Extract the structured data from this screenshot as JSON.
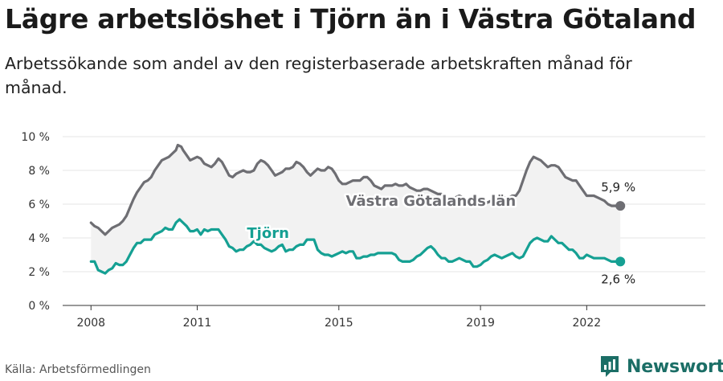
{
  "header": {
    "title": "Lägre arbetslöshet i Tjörn än i Västra Götaland",
    "subtitle": "Arbetssökande som andel av den registerbaserade arbetskraften månad för månad."
  },
  "footer": {
    "source": "Källa: Arbetsförmedlingen",
    "brand": "Newsworthy"
  },
  "chart_data": {
    "type": "line",
    "x_unit": "year",
    "xlim": [
      2007.2,
      2025.35
    ],
    "ylim": [
      0,
      10
    ],
    "y_ticks": [
      {
        "value": 0,
        "label": "0 %"
      },
      {
        "value": 2,
        "label": "2 %"
      },
      {
        "value": 4,
        "label": "4 %"
      },
      {
        "value": 6,
        "label": "6 %"
      },
      {
        "value": 8,
        "label": "8 %"
      },
      {
        "value": 10,
        "label": "10 %"
      }
    ],
    "x_ticks": [
      {
        "value": 2008,
        "label": "2008"
      },
      {
        "value": 2011,
        "label": "2011"
      },
      {
        "value": 2015,
        "label": "2015"
      },
      {
        "value": 2019,
        "label": "2019"
      },
      {
        "value": 2022,
        "label": "2022"
      }
    ],
    "grid": "horizontal",
    "shade_between_series": true,
    "series": [
      {
        "name": "Västra Götalands län",
        "color": "#6e6e73",
        "end_label": "5,9 %",
        "points": [
          [
            2008.0,
            4.9
          ],
          [
            2008.1,
            4.7
          ],
          [
            2008.2,
            4.6
          ],
          [
            2008.3,
            4.4
          ],
          [
            2008.4,
            4.2
          ],
          [
            2008.5,
            4.4
          ],
          [
            2008.6,
            4.6
          ],
          [
            2008.7,
            4.7
          ],
          [
            2008.8,
            4.8
          ],
          [
            2008.9,
            5.0
          ],
          [
            2009.0,
            5.3
          ],
          [
            2009.1,
            5.8
          ],
          [
            2009.2,
            6.3
          ],
          [
            2009.3,
            6.7
          ],
          [
            2009.4,
            7.0
          ],
          [
            2009.5,
            7.3
          ],
          [
            2009.6,
            7.4
          ],
          [
            2009.7,
            7.6
          ],
          [
            2009.8,
            8.0
          ],
          [
            2009.9,
            8.3
          ],
          [
            2010.0,
            8.6
          ],
          [
            2010.1,
            8.7
          ],
          [
            2010.2,
            8.8
          ],
          [
            2010.3,
            9.0
          ],
          [
            2010.4,
            9.2
          ],
          [
            2010.45,
            9.5
          ],
          [
            2010.55,
            9.4
          ],
          [
            2010.6,
            9.2
          ],
          [
            2010.7,
            8.9
          ],
          [
            2010.8,
            8.6
          ],
          [
            2010.9,
            8.7
          ],
          [
            2011.0,
            8.8
          ],
          [
            2011.1,
            8.7
          ],
          [
            2011.2,
            8.4
          ],
          [
            2011.3,
            8.3
          ],
          [
            2011.4,
            8.2
          ],
          [
            2011.5,
            8.4
          ],
          [
            2011.6,
            8.7
          ],
          [
            2011.7,
            8.5
          ],
          [
            2011.8,
            8.1
          ],
          [
            2011.9,
            7.7
          ],
          [
            2012.0,
            7.6
          ],
          [
            2012.1,
            7.8
          ],
          [
            2012.2,
            7.9
          ],
          [
            2012.3,
            8.0
          ],
          [
            2012.4,
            7.9
          ],
          [
            2012.5,
            7.9
          ],
          [
            2012.6,
            8.0
          ],
          [
            2012.7,
            8.4
          ],
          [
            2012.8,
            8.6
          ],
          [
            2012.9,
            8.5
          ],
          [
            2013.0,
            8.3
          ],
          [
            2013.1,
            8.0
          ],
          [
            2013.2,
            7.7
          ],
          [
            2013.3,
            7.8
          ],
          [
            2013.4,
            7.9
          ],
          [
            2013.5,
            8.1
          ],
          [
            2013.6,
            8.1
          ],
          [
            2013.7,
            8.2
          ],
          [
            2013.8,
            8.5
          ],
          [
            2013.9,
            8.4
          ],
          [
            2014.0,
            8.2
          ],
          [
            2014.1,
            7.9
          ],
          [
            2014.2,
            7.7
          ],
          [
            2014.3,
            7.9
          ],
          [
            2014.4,
            8.1
          ],
          [
            2014.5,
            8.0
          ],
          [
            2014.6,
            8.0
          ],
          [
            2014.7,
            8.2
          ],
          [
            2014.8,
            8.1
          ],
          [
            2014.9,
            7.8
          ],
          [
            2015.0,
            7.4
          ],
          [
            2015.1,
            7.2
          ],
          [
            2015.2,
            7.2
          ],
          [
            2015.3,
            7.3
          ],
          [
            2015.4,
            7.4
          ],
          [
            2015.5,
            7.4
          ],
          [
            2015.6,
            7.4
          ],
          [
            2015.7,
            7.6
          ],
          [
            2015.8,
            7.6
          ],
          [
            2015.9,
            7.4
          ],
          [
            2016.0,
            7.1
          ],
          [
            2016.1,
            7.0
          ],
          [
            2016.2,
            6.9
          ],
          [
            2016.3,
            7.1
          ],
          [
            2016.4,
            7.1
          ],
          [
            2016.5,
            7.1
          ],
          [
            2016.6,
            7.2
          ],
          [
            2016.7,
            7.1
          ],
          [
            2016.8,
            7.1
          ],
          [
            2016.9,
            7.2
          ],
          [
            2017.0,
            7.0
          ],
          [
            2017.1,
            6.9
          ],
          [
            2017.2,
            6.8
          ],
          [
            2017.3,
            6.8
          ],
          [
            2017.4,
            6.9
          ],
          [
            2017.5,
            6.9
          ],
          [
            2017.6,
            6.8
          ],
          [
            2017.7,
            6.7
          ],
          [
            2017.8,
            6.6
          ],
          [
            2017.9,
            6.6
          ],
          [
            2018.0,
            6.5
          ],
          [
            2018.1,
            6.3
          ],
          [
            2018.2,
            6.3
          ],
          [
            2018.3,
            6.4
          ],
          [
            2018.4,
            6.5
          ],
          [
            2018.5,
            6.4
          ],
          [
            2018.6,
            6.2
          ],
          [
            2018.7,
            6.1
          ],
          [
            2018.8,
            6.0
          ],
          [
            2018.9,
            5.9
          ],
          [
            2019.0,
            6.0
          ],
          [
            2019.1,
            6.0
          ],
          [
            2019.2,
            6.1
          ],
          [
            2019.3,
            6.2
          ],
          [
            2019.4,
            6.2
          ],
          [
            2019.5,
            6.3
          ],
          [
            2019.6,
            6.3
          ],
          [
            2019.7,
            6.4
          ],
          [
            2019.8,
            6.4
          ],
          [
            2019.9,
            6.5
          ],
          [
            2020.0,
            6.5
          ],
          [
            2020.1,
            6.8
          ],
          [
            2020.2,
            7.4
          ],
          [
            2020.3,
            8.0
          ],
          [
            2020.4,
            8.5
          ],
          [
            2020.5,
            8.8
          ],
          [
            2020.6,
            8.7
          ],
          [
            2020.7,
            8.6
          ],
          [
            2020.8,
            8.4
          ],
          [
            2020.9,
            8.2
          ],
          [
            2021.0,
            8.3
          ],
          [
            2021.1,
            8.3
          ],
          [
            2021.2,
            8.2
          ],
          [
            2021.3,
            7.9
          ],
          [
            2021.4,
            7.6
          ],
          [
            2021.5,
            7.5
          ],
          [
            2021.6,
            7.4
          ],
          [
            2021.7,
            7.4
          ],
          [
            2021.8,
            7.1
          ],
          [
            2021.9,
            6.8
          ],
          [
            2022.0,
            6.5
          ],
          [
            2022.1,
            6.5
          ],
          [
            2022.2,
            6.5
          ],
          [
            2022.3,
            6.4
          ],
          [
            2022.4,
            6.3
          ],
          [
            2022.5,
            6.2
          ],
          [
            2022.6,
            6.0
          ],
          [
            2022.7,
            5.9
          ],
          [
            2022.8,
            5.9
          ],
          [
            2022.9,
            5.9
          ],
          [
            2022.95,
            5.9
          ]
        ]
      },
      {
        "name": "Tjörn",
        "color": "#15a093",
        "end_label": "2,6 %",
        "points": [
          [
            2008.0,
            2.6
          ],
          [
            2008.1,
            2.6
          ],
          [
            2008.2,
            2.1
          ],
          [
            2008.3,
            2.0
          ],
          [
            2008.4,
            1.9
          ],
          [
            2008.5,
            2.1
          ],
          [
            2008.6,
            2.2
          ],
          [
            2008.7,
            2.5
          ],
          [
            2008.8,
            2.4
          ],
          [
            2008.9,
            2.4
          ],
          [
            2009.0,
            2.6
          ],
          [
            2009.1,
            3.0
          ],
          [
            2009.2,
            3.4
          ],
          [
            2009.3,
            3.7
          ],
          [
            2009.4,
            3.7
          ],
          [
            2009.5,
            3.9
          ],
          [
            2009.6,
            3.9
          ],
          [
            2009.7,
            3.9
          ],
          [
            2009.8,
            4.2
          ],
          [
            2009.9,
            4.3
          ],
          [
            2010.0,
            4.4
          ],
          [
            2010.1,
            4.6
          ],
          [
            2010.2,
            4.5
          ],
          [
            2010.3,
            4.5
          ],
          [
            2010.4,
            4.9
          ],
          [
            2010.5,
            5.1
          ],
          [
            2010.6,
            4.9
          ],
          [
            2010.7,
            4.7
          ],
          [
            2010.8,
            4.4
          ],
          [
            2010.9,
            4.4
          ],
          [
            2011.0,
            4.5
          ],
          [
            2011.1,
            4.2
          ],
          [
            2011.2,
            4.5
          ],
          [
            2011.3,
            4.4
          ],
          [
            2011.4,
            4.5
          ],
          [
            2011.5,
            4.5
          ],
          [
            2011.6,
            4.5
          ],
          [
            2011.7,
            4.2
          ],
          [
            2011.8,
            3.9
          ],
          [
            2011.9,
            3.5
          ],
          [
            2012.0,
            3.4
          ],
          [
            2012.1,
            3.2
          ],
          [
            2012.2,
            3.3
          ],
          [
            2012.3,
            3.3
          ],
          [
            2012.4,
            3.5
          ],
          [
            2012.5,
            3.6
          ],
          [
            2012.6,
            3.8
          ],
          [
            2012.7,
            3.6
          ],
          [
            2012.8,
            3.6
          ],
          [
            2012.9,
            3.4
          ],
          [
            2013.0,
            3.3
          ],
          [
            2013.1,
            3.2
          ],
          [
            2013.2,
            3.3
          ],
          [
            2013.3,
            3.5
          ],
          [
            2013.4,
            3.6
          ],
          [
            2013.5,
            3.2
          ],
          [
            2013.6,
            3.3
          ],
          [
            2013.7,
            3.3
          ],
          [
            2013.8,
            3.5
          ],
          [
            2013.9,
            3.6
          ],
          [
            2014.0,
            3.6
          ],
          [
            2014.1,
            3.9
          ],
          [
            2014.2,
            3.9
          ],
          [
            2014.3,
            3.9
          ],
          [
            2014.4,
            3.3
          ],
          [
            2014.5,
            3.1
          ],
          [
            2014.6,
            3.0
          ],
          [
            2014.7,
            3.0
          ],
          [
            2014.8,
            2.9
          ],
          [
            2014.9,
            3.0
          ],
          [
            2015.0,
            3.1
          ],
          [
            2015.1,
            3.2
          ],
          [
            2015.2,
            3.1
          ],
          [
            2015.3,
            3.2
          ],
          [
            2015.4,
            3.2
          ],
          [
            2015.5,
            2.8
          ],
          [
            2015.6,
            2.8
          ],
          [
            2015.7,
            2.9
          ],
          [
            2015.8,
            2.9
          ],
          [
            2015.9,
            3.0
          ],
          [
            2016.0,
            3.0
          ],
          [
            2016.1,
            3.1
          ],
          [
            2016.2,
            3.1
          ],
          [
            2016.3,
            3.1
          ],
          [
            2016.4,
            3.1
          ],
          [
            2016.5,
            3.1
          ],
          [
            2016.6,
            3.0
          ],
          [
            2016.7,
            2.7
          ],
          [
            2016.8,
            2.6
          ],
          [
            2016.9,
            2.6
          ],
          [
            2017.0,
            2.6
          ],
          [
            2017.1,
            2.7
          ],
          [
            2017.2,
            2.9
          ],
          [
            2017.3,
            3.0
          ],
          [
            2017.4,
            3.2
          ],
          [
            2017.5,
            3.4
          ],
          [
            2017.6,
            3.5
          ],
          [
            2017.7,
            3.3
          ],
          [
            2017.8,
            3.0
          ],
          [
            2017.9,
            2.8
          ],
          [
            2018.0,
            2.8
          ],
          [
            2018.1,
            2.6
          ],
          [
            2018.2,
            2.6
          ],
          [
            2018.3,
            2.7
          ],
          [
            2018.4,
            2.8
          ],
          [
            2018.5,
            2.7
          ],
          [
            2018.6,
            2.6
          ],
          [
            2018.7,
            2.6
          ],
          [
            2018.8,
            2.3
          ],
          [
            2018.9,
            2.3
          ],
          [
            2019.0,
            2.4
          ],
          [
            2019.1,
            2.6
          ],
          [
            2019.2,
            2.7
          ],
          [
            2019.3,
            2.9
          ],
          [
            2019.4,
            3.0
          ],
          [
            2019.5,
            2.9
          ],
          [
            2019.6,
            2.8
          ],
          [
            2019.7,
            2.9
          ],
          [
            2019.8,
            3.0
          ],
          [
            2019.9,
            3.1
          ],
          [
            2020.0,
            2.9
          ],
          [
            2020.1,
            2.8
          ],
          [
            2020.2,
            2.9
          ],
          [
            2020.3,
            3.3
          ],
          [
            2020.4,
            3.7
          ],
          [
            2020.5,
            3.9
          ],
          [
            2020.6,
            4.0
          ],
          [
            2020.7,
            3.9
          ],
          [
            2020.8,
            3.8
          ],
          [
            2020.9,
            3.8
          ],
          [
            2021.0,
            4.1
          ],
          [
            2021.1,
            3.9
          ],
          [
            2021.2,
            3.7
          ],
          [
            2021.3,
            3.7
          ],
          [
            2021.4,
            3.5
          ],
          [
            2021.5,
            3.3
          ],
          [
            2021.6,
            3.3
          ],
          [
            2021.7,
            3.1
          ],
          [
            2021.8,
            2.8
          ],
          [
            2021.9,
            2.8
          ],
          [
            2022.0,
            3.0
          ],
          [
            2022.1,
            2.9
          ],
          [
            2022.2,
            2.8
          ],
          [
            2022.3,
            2.8
          ],
          [
            2022.4,
            2.8
          ],
          [
            2022.5,
            2.8
          ],
          [
            2022.6,
            2.7
          ],
          [
            2022.7,
            2.6
          ],
          [
            2022.8,
            2.6
          ],
          [
            2022.9,
            2.6
          ],
          [
            2022.95,
            2.6
          ]
        ]
      }
    ]
  }
}
